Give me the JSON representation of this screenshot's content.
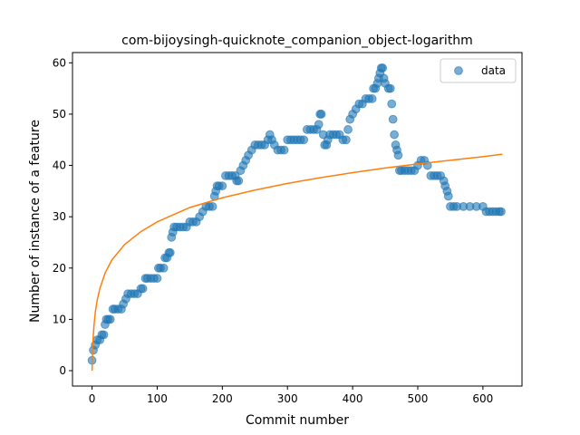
{
  "chart_data": {
    "type": "scatter",
    "title": "com-bijoysingh-quicknote_companion_object-logarithm",
    "xlabel": "Commit number",
    "ylabel": "Number of instance of a feature",
    "xlim": [
      -30,
      660
    ],
    "ylim": [
      -3,
      62
    ],
    "xticks": [
      0,
      100,
      200,
      300,
      400,
      500,
      600
    ],
    "yticks": [
      0,
      10,
      20,
      30,
      40,
      50,
      60
    ],
    "grid": false,
    "legend": {
      "placement": "top-right",
      "entries": [
        "data"
      ]
    },
    "colors": {
      "data": "#1f77b4",
      "fit": "#ff7f0e"
    },
    "series": [
      {
        "name": "data",
        "kind": "scatter",
        "points": [
          [
            0,
            2
          ],
          [
            2,
            4
          ],
          [
            5,
            5
          ],
          [
            8,
            6
          ],
          [
            12,
            6
          ],
          [
            15,
            7
          ],
          [
            18,
            7
          ],
          [
            20,
            9
          ],
          [
            22,
            10
          ],
          [
            25,
            10
          ],
          [
            28,
            10
          ],
          [
            32,
            12
          ],
          [
            35,
            12
          ],
          [
            40,
            12
          ],
          [
            45,
            12
          ],
          [
            48,
            13
          ],
          [
            52,
            14
          ],
          [
            55,
            15
          ],
          [
            60,
            15
          ],
          [
            65,
            15
          ],
          [
            70,
            15
          ],
          [
            75,
            16
          ],
          [
            78,
            16
          ],
          [
            82,
            18
          ],
          [
            85,
            18
          ],
          [
            90,
            18
          ],
          [
            95,
            18
          ],
          [
            100,
            18
          ],
          [
            102,
            20
          ],
          [
            105,
            20
          ],
          [
            110,
            20
          ],
          [
            112,
            22
          ],
          [
            115,
            22
          ],
          [
            118,
            23
          ],
          [
            120,
            23
          ],
          [
            122,
            26
          ],
          [
            124,
            27
          ],
          [
            126,
            28
          ],
          [
            130,
            28
          ],
          [
            135,
            28
          ],
          [
            140,
            28
          ],
          [
            145,
            28
          ],
          [
            150,
            29
          ],
          [
            155,
            29
          ],
          [
            160,
            29
          ],
          [
            165,
            30
          ],
          [
            170,
            31
          ],
          [
            175,
            32
          ],
          [
            180,
            32
          ],
          [
            185,
            32
          ],
          [
            188,
            34
          ],
          [
            190,
            35
          ],
          [
            192,
            36
          ],
          [
            195,
            36
          ],
          [
            200,
            36
          ],
          [
            205,
            38
          ],
          [
            210,
            38
          ],
          [
            215,
            38
          ],
          [
            220,
            38
          ],
          [
            222,
            37
          ],
          [
            225,
            37
          ],
          [
            228,
            39
          ],
          [
            232,
            40
          ],
          [
            236,
            41
          ],
          [
            240,
            42
          ],
          [
            245,
            43
          ],
          [
            250,
            44
          ],
          [
            255,
            44
          ],
          [
            260,
            44
          ],
          [
            265,
            44
          ],
          [
            270,
            45
          ],
          [
            273,
            46
          ],
          [
            276,
            45
          ],
          [
            280,
            44
          ],
          [
            285,
            43
          ],
          [
            290,
            43
          ],
          [
            295,
            43
          ],
          [
            300,
            45
          ],
          [
            305,
            45
          ],
          [
            310,
            45
          ],
          [
            315,
            45
          ],
          [
            320,
            45
          ],
          [
            325,
            45
          ],
          [
            330,
            47
          ],
          [
            335,
            47
          ],
          [
            340,
            47
          ],
          [
            345,
            47
          ],
          [
            348,
            48
          ],
          [
            350,
            50
          ],
          [
            352,
            50
          ],
          [
            355,
            46
          ],
          [
            357,
            44
          ],
          [
            360,
            44
          ],
          [
            362,
            45
          ],
          [
            365,
            46
          ],
          [
            370,
            46
          ],
          [
            375,
            46
          ],
          [
            380,
            46
          ],
          [
            385,
            45
          ],
          [
            390,
            45
          ],
          [
            393,
            47
          ],
          [
            396,
            49
          ],
          [
            400,
            50
          ],
          [
            405,
            51
          ],
          [
            410,
            52
          ],
          [
            415,
            52
          ],
          [
            420,
            53
          ],
          [
            425,
            53
          ],
          [
            430,
            53
          ],
          [
            432,
            55
          ],
          [
            435,
            55
          ],
          [
            438,
            56
          ],
          [
            440,
            57
          ],
          [
            442,
            58
          ],
          [
            444,
            59
          ],
          [
            446,
            59
          ],
          [
            448,
            57
          ],
          [
            450,
            56
          ],
          [
            455,
            55
          ],
          [
            458,
            55
          ],
          [
            460,
            52
          ],
          [
            462,
            49
          ],
          [
            464,
            46
          ],
          [
            466,
            44
          ],
          [
            468,
            43
          ],
          [
            470,
            42
          ],
          [
            472,
            39
          ],
          [
            475,
            39
          ],
          [
            480,
            39
          ],
          [
            485,
            39
          ],
          [
            490,
            39
          ],
          [
            495,
            39
          ],
          [
            500,
            40
          ],
          [
            505,
            41
          ],
          [
            510,
            41
          ],
          [
            515,
            40
          ],
          [
            520,
            38
          ],
          [
            525,
            38
          ],
          [
            530,
            38
          ],
          [
            535,
            38
          ],
          [
            540,
            37
          ],
          [
            542,
            36
          ],
          [
            545,
            35
          ],
          [
            547,
            34
          ],
          [
            550,
            32
          ],
          [
            555,
            32
          ],
          [
            560,
            32
          ],
          [
            570,
            32
          ],
          [
            580,
            32
          ],
          [
            590,
            32
          ],
          [
            600,
            32
          ],
          [
            605,
            31
          ],
          [
            610,
            31
          ],
          [
            615,
            31
          ],
          [
            620,
            31
          ],
          [
            625,
            31
          ],
          [
            628,
            31
          ]
        ]
      },
      {
        "name": "",
        "kind": "line",
        "function": "logarithmic",
        "points": [
          [
            0,
            0
          ],
          [
            1,
            4.5
          ],
          [
            2,
            7
          ],
          [
            3,
            8.8
          ],
          [
            5,
            11.4
          ],
          [
            8,
            13.8
          ],
          [
            12,
            16
          ],
          [
            20,
            19
          ],
          [
            30,
            21.5
          ],
          [
            50,
            24.6
          ],
          [
            75,
            27.1
          ],
          [
            100,
            29
          ],
          [
            150,
            31.8
          ],
          [
            200,
            33.7
          ],
          [
            250,
            35.2
          ],
          [
            300,
            36.5
          ],
          [
            350,
            37.6
          ],
          [
            400,
            38.6
          ],
          [
            450,
            39.5
          ],
          [
            500,
            40.3
          ],
          [
            550,
            41
          ],
          [
            600,
            41.7
          ],
          [
            630,
            42.2
          ]
        ]
      }
    ]
  }
}
